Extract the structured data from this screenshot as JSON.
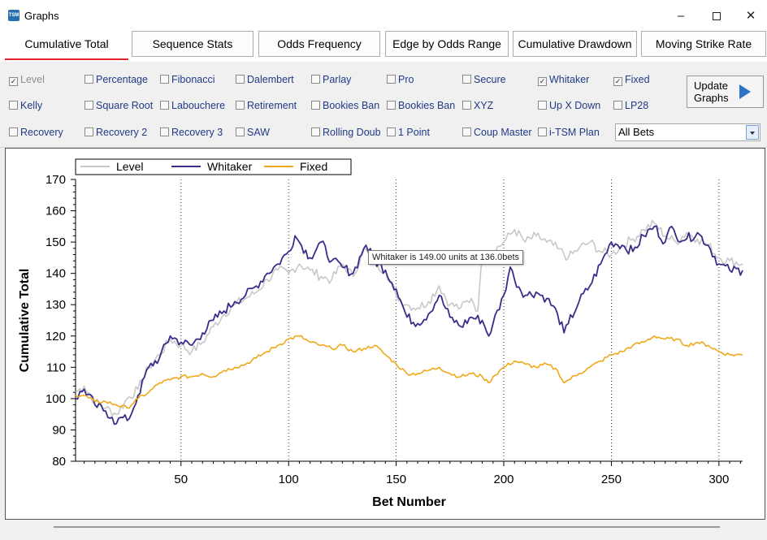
{
  "window": {
    "title": "Graphs",
    "icon_text": "TSM"
  },
  "tabs": [
    {
      "label": "Cumulative Total",
      "active": true
    },
    {
      "label": "Sequence Stats"
    },
    {
      "label": "Odds Frequency"
    },
    {
      "label": "Edge by Odds Range"
    },
    {
      "label": "Cumulative Drawdown"
    },
    {
      "label": "Moving Strike Rate"
    }
  ],
  "options": [
    {
      "label": "Level",
      "checked": true,
      "disabled": true
    },
    {
      "label": "Percentage"
    },
    {
      "label": "Fibonacci"
    },
    {
      "label": "Dalembert"
    },
    {
      "label": "Parlay"
    },
    {
      "label": "Pro"
    },
    {
      "label": "Secure"
    },
    {
      "label": "Whitaker",
      "checked": true
    },
    {
      "label": "Fixed",
      "checked": true
    },
    {
      "label": "Kelly"
    },
    {
      "label": "Square Root"
    },
    {
      "label": "Labouchere"
    },
    {
      "label": "Retirement"
    },
    {
      "label": "Bookies Ban"
    },
    {
      "label": "Bookies Ban"
    },
    {
      "label": "XYZ"
    },
    {
      "label": "Up X Down"
    },
    {
      "label": "LP28"
    },
    {
      "label": "Recovery"
    },
    {
      "label": "Recovery 2"
    },
    {
      "label": "Recovery 3"
    },
    {
      "label": "SAW"
    },
    {
      "label": "Rolling Doub"
    },
    {
      "label": "1 Point"
    },
    {
      "label": "Coup Master"
    },
    {
      "label": "i-TSM Plan"
    }
  ],
  "update_button": {
    "label": "Update Graphs"
  },
  "filter_select": {
    "value": "All Bets"
  },
  "tooltip": "Whitaker is 149.00 units at 136.0bets",
  "chart_data": {
    "type": "line",
    "xlabel": "Bet Number",
    "ylabel": "Cumulative Total",
    "xlim": [
      1,
      311
    ],
    "ylim": [
      80,
      170
    ],
    "xticks": [
      50,
      100,
      150,
      200,
      250,
      300
    ],
    "yticks": [
      80,
      90,
      100,
      110,
      120,
      130,
      140,
      150,
      160,
      170
    ],
    "grid": "vertical dotted at major x ticks",
    "legend": "top-left",
    "series": [
      {
        "name": "Level",
        "color": "#c8c8c8",
        "points": [
          [
            1,
            102
          ],
          [
            5,
            104
          ],
          [
            10,
            99
          ],
          [
            15,
            97
          ],
          [
            20,
            95
          ],
          [
            25,
            100
          ],
          [
            30,
            103
          ],
          [
            35,
            110
          ],
          [
            40,
            114
          ],
          [
            45,
            119
          ],
          [
            50,
            117
          ],
          [
            55,
            115
          ],
          [
            60,
            118
          ],
          [
            65,
            123
          ],
          [
            70,
            127
          ],
          [
            75,
            130
          ],
          [
            80,
            132
          ],
          [
            85,
            134
          ],
          [
            90,
            138
          ],
          [
            95,
            141
          ],
          [
            100,
            140
          ],
          [
            105,
            143
          ],
          [
            110,
            141
          ],
          [
            115,
            139
          ],
          [
            120,
            138
          ],
          [
            125,
            143
          ],
          [
            130,
            139
          ],
          [
            135,
            148
          ],
          [
            140,
            143
          ],
          [
            145,
            141
          ],
          [
            150,
            133
          ],
          [
            155,
            130
          ],
          [
            160,
            129
          ],
          [
            165,
            131
          ],
          [
            170,
            136
          ],
          [
            175,
            130
          ],
          [
            180,
            129
          ],
          [
            185,
            132
          ],
          [
            188,
            128
          ],
          [
            190,
            146
          ],
          [
            195,
            147
          ],
          [
            200,
            150
          ],
          [
            205,
            154
          ],
          [
            210,
            150
          ],
          [
            215,
            152
          ],
          [
            220,
            150
          ],
          [
            225,
            148
          ],
          [
            230,
            145
          ],
          [
            235,
            148
          ],
          [
            240,
            150
          ],
          [
            245,
            147
          ],
          [
            250,
            146
          ],
          [
            255,
            149
          ],
          [
            260,
            151
          ],
          [
            265,
            154
          ],
          [
            270,
            156
          ],
          [
            275,
            152
          ],
          [
            280,
            150
          ],
          [
            285,
            153
          ],
          [
            290,
            151
          ],
          [
            295,
            149
          ],
          [
            300,
            145
          ],
          [
            305,
            144
          ],
          [
            311,
            143
          ]
        ]
      },
      {
        "name": "Whitaker",
        "color": "#3a2d8a",
        "points": [
          [
            1,
            100
          ],
          [
            5,
            103
          ],
          [
            10,
            98
          ],
          [
            15,
            96
          ],
          [
            18,
            94
          ],
          [
            20,
            92
          ],
          [
            22,
            94
          ],
          [
            25,
            93
          ],
          [
            28,
            97
          ],
          [
            30,
            101
          ],
          [
            35,
            110
          ],
          [
            40,
            113
          ],
          [
            45,
            120
          ],
          [
            50,
            118
          ],
          [
            55,
            117
          ],
          [
            60,
            121
          ],
          [
            65,
            125
          ],
          [
            70,
            128
          ],
          [
            75,
            131
          ],
          [
            80,
            133
          ],
          [
            85,
            136
          ],
          [
            90,
            140
          ],
          [
            95,
            143
          ],
          [
            100,
            147
          ],
          [
            103,
            152
          ],
          [
            105,
            150
          ],
          [
            110,
            145
          ],
          [
            115,
            150
          ],
          [
            120,
            144
          ],
          [
            125,
            142
          ],
          [
            130,
            140
          ],
          [
            135,
            148
          ],
          [
            136,
            149
          ],
          [
            140,
            144
          ],
          [
            145,
            141
          ],
          [
            150,
            135
          ],
          [
            155,
            126
          ],
          [
            160,
            124
          ],
          [
            165,
            127
          ],
          [
            170,
            133
          ],
          [
            175,
            126
          ],
          [
            180,
            123
          ],
          [
            185,
            126
          ],
          [
            190,
            125
          ],
          [
            193,
            120
          ],
          [
            195,
            124
          ],
          [
            200,
            133
          ],
          [
            203,
            142
          ],
          [
            205,
            138
          ],
          [
            210,
            133
          ],
          [
            215,
            134
          ],
          [
            220,
            132
          ],
          [
            225,
            127
          ],
          [
            228,
            121
          ],
          [
            230,
            124
          ],
          [
            235,
            131
          ],
          [
            240,
            136
          ],
          [
            245,
            143
          ],
          [
            250,
            150
          ],
          [
            255,
            149
          ],
          [
            260,
            147
          ],
          [
            265,
            152
          ],
          [
            270,
            155
          ],
          [
            275,
            150
          ],
          [
            278,
            155
          ],
          [
            280,
            152
          ],
          [
            285,
            151
          ],
          [
            290,
            153
          ],
          [
            295,
            149
          ],
          [
            300,
            143
          ],
          [
            305,
            141
          ],
          [
            311,
            141
          ]
        ]
      },
      {
        "name": "Fixed",
        "color": "#f0a818",
        "points": [
          [
            1,
            101
          ],
          [
            5,
            101
          ],
          [
            10,
            99
          ],
          [
            15,
            99
          ],
          [
            20,
            98
          ],
          [
            25,
            97
          ],
          [
            30,
            100
          ],
          [
            35,
            102
          ],
          [
            40,
            105
          ],
          [
            45,
            106
          ],
          [
            50,
            107
          ],
          [
            55,
            107
          ],
          [
            60,
            108
          ],
          [
            65,
            107
          ],
          [
            70,
            109
          ],
          [
            75,
            110
          ],
          [
            80,
            111
          ],
          [
            85,
            113
          ],
          [
            90,
            115
          ],
          [
            95,
            117
          ],
          [
            100,
            119
          ],
          [
            105,
            120
          ],
          [
            110,
            118
          ],
          [
            115,
            117
          ],
          [
            120,
            116
          ],
          [
            125,
            117
          ],
          [
            130,
            115
          ],
          [
            135,
            116
          ],
          [
            140,
            117
          ],
          [
            145,
            114
          ],
          [
            150,
            111
          ],
          [
            155,
            108
          ],
          [
            160,
            108
          ],
          [
            165,
            109
          ],
          [
            170,
            110
          ],
          [
            175,
            108
          ],
          [
            180,
            107
          ],
          [
            185,
            108
          ],
          [
            190,
            107
          ],
          [
            193,
            105
          ],
          [
            195,
            107
          ],
          [
            200,
            110
          ],
          [
            205,
            112
          ],
          [
            210,
            111
          ],
          [
            215,
            110
          ],
          [
            220,
            111
          ],
          [
            225,
            109
          ],
          [
            228,
            105
          ],
          [
            230,
            106
          ],
          [
            235,
            108
          ],
          [
            240,
            110
          ],
          [
            245,
            112
          ],
          [
            250,
            114
          ],
          [
            255,
            115
          ],
          [
            260,
            117
          ],
          [
            265,
            118
          ],
          [
            270,
            120
          ],
          [
            275,
            119
          ],
          [
            280,
            119
          ],
          [
            285,
            117
          ],
          [
            290,
            118
          ],
          [
            295,
            117
          ],
          [
            300,
            115
          ],
          [
            305,
            114
          ],
          [
            311,
            114
          ]
        ]
      }
    ]
  }
}
